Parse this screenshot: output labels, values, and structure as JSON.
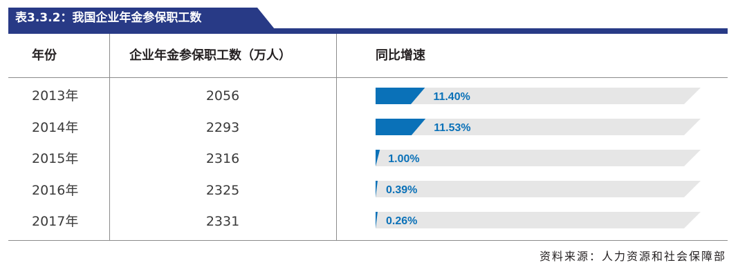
{
  "title": "表3.3.2：我国企业年金参保职工数",
  "headers": {
    "year": "年份",
    "count": "企业年金参保职工数（万人）",
    "growth": "同比增速"
  },
  "rows": [
    {
      "year": "2013年",
      "count": "2056",
      "growth_label": "11.40%"
    },
    {
      "year": "2014年",
      "count": "2293",
      "growth_label": "11.53%"
    },
    {
      "year": "2015年",
      "count": "2316",
      "growth_label": "1.00%"
    },
    {
      "year": "2016年",
      "count": "2325",
      "growth_label": "0.39%"
    },
    {
      "year": "2017年",
      "count": "2331",
      "growth_label": "0.26%"
    }
  ],
  "source": "资料来源：人力资源和社会保障部",
  "colors": {
    "title_bg": "#283a86",
    "bar_fill": "#0a71b8",
    "bar_track": "#e6e6e6",
    "label_on_bar": "#ffffff",
    "label_off_bar": "#0a71b8"
  },
  "chart_data": {
    "type": "table",
    "columns": [
      "年份",
      "企业年金参保职工数（万人）",
      "同比增速"
    ],
    "categories": [
      "2013年",
      "2014年",
      "2015年",
      "2016年",
      "2017年"
    ],
    "series": [
      {
        "name": "企业年金参保职工数（万人）",
        "values": [
          2056,
          2293,
          2316,
          2325,
          2331
        ]
      },
      {
        "name": "同比增速",
        "values": [
          11.4,
          11.53,
          1.0,
          0.39,
          0.26
        ]
      }
    ],
    "growth_bar_scale_max": 75
  }
}
